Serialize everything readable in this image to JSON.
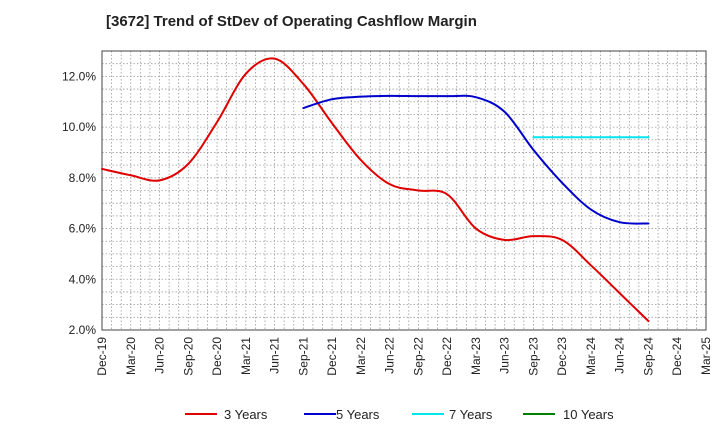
{
  "chart_data": {
    "type": "line",
    "title": "[3672]  Trend of StDev of Operating Cashflow Margin",
    "xlabel": "",
    "ylabel": "",
    "x": [
      "Dec-19",
      "Mar-20",
      "Jun-20",
      "Sep-20",
      "Dec-20",
      "Mar-21",
      "Jun-21",
      "Sep-21",
      "Dec-21",
      "Mar-22",
      "Jun-22",
      "Sep-22",
      "Dec-22",
      "Mar-23",
      "Jun-23",
      "Sep-23",
      "Dec-23",
      "Mar-24",
      "Jun-24",
      "Sep-24",
      "Dec-24",
      "Mar-25"
    ],
    "ylim": [
      2.0,
      13.0
    ],
    "yticks": [
      "2.0%",
      "4.0%",
      "6.0%",
      "8.0%",
      "10.0%",
      "12.0%"
    ],
    "ytick_values": [
      2,
      4,
      6,
      8,
      10,
      12
    ],
    "grid": true,
    "legend_position": "bottom",
    "series": [
      {
        "name": "3 Years",
        "color": "#e00000",
        "values": [
          8.35,
          8.1,
          7.9,
          8.55,
          10.2,
          12.1,
          12.7,
          11.7,
          10.15,
          8.7,
          7.75,
          7.5,
          7.35,
          6.0,
          5.55,
          5.7,
          5.55,
          4.55,
          3.45,
          2.35,
          null,
          null
        ]
      },
      {
        "name": "5 Years",
        "color": "#0000cc",
        "values": [
          null,
          null,
          null,
          null,
          null,
          null,
          null,
          10.75,
          11.1,
          11.2,
          11.23,
          11.22,
          11.22,
          11.18,
          10.6,
          9.1,
          7.8,
          6.75,
          6.25,
          6.2,
          null,
          null
        ]
      },
      {
        "name": "7 Years",
        "color": "#00e5ee",
        "values": [
          null,
          null,
          null,
          null,
          null,
          null,
          null,
          null,
          null,
          null,
          null,
          null,
          null,
          null,
          null,
          9.6,
          9.6,
          9.6,
          9.6,
          9.6,
          null,
          null
        ]
      },
      {
        "name": "10 Years",
        "color": "#008000",
        "values": [
          null,
          null,
          null,
          null,
          null,
          null,
          null,
          null,
          null,
          null,
          null,
          null,
          null,
          null,
          null,
          null,
          null,
          null,
          null,
          null,
          null,
          null
        ]
      }
    ]
  }
}
